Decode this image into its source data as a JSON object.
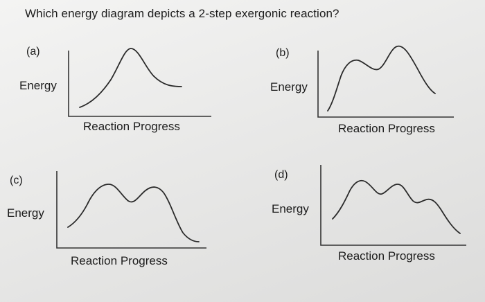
{
  "question": "Which energy diagram depicts a 2-step exergonic reaction?",
  "panels": [
    {
      "label": "(a)",
      "y_axis": "Energy",
      "x_axis": "Reaction Progress"
    },
    {
      "label": "(b)",
      "y_axis": "Energy",
      "x_axis": "Reaction Progress"
    },
    {
      "label": "(c)",
      "y_axis": "Energy",
      "x_axis": "Reaction Progress"
    },
    {
      "label": "(d)",
      "y_axis": "Energy",
      "x_axis": "Reaction Progress"
    }
  ]
}
